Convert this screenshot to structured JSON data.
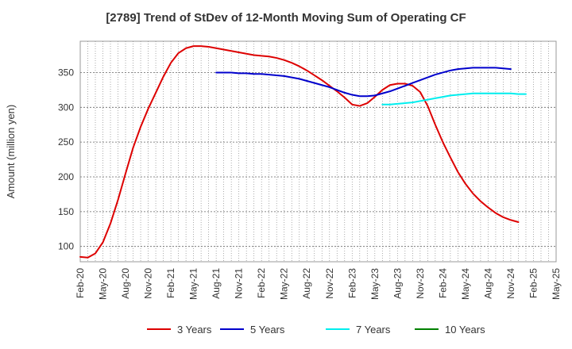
{
  "chart_data": {
    "type": "line",
    "title": "[2789]  Trend of StDev of 12-Month Moving Sum of Operating CF",
    "xlabel": "",
    "ylabel": "Amount (million yen)",
    "ylim": [
      78,
      395
    ],
    "yticks": [
      100,
      150,
      200,
      250,
      300,
      350
    ],
    "x_tick_labels": [
      "Feb-20",
      "May-20",
      "Aug-20",
      "Nov-20",
      "Feb-21",
      "May-21",
      "Aug-21",
      "Nov-21",
      "Feb-22",
      "May-22",
      "Aug-22",
      "Nov-22",
      "Feb-23",
      "May-23",
      "Aug-23",
      "Nov-23",
      "Feb-24",
      "May-24",
      "Aug-24",
      "Nov-24",
      "Feb-25",
      "May-25"
    ],
    "grid": true,
    "legend_position": "bottom",
    "x_months": [
      "2020-02",
      "2020-03",
      "2020-04",
      "2020-05",
      "2020-06",
      "2020-07",
      "2020-08",
      "2020-09",
      "2020-10",
      "2020-11",
      "2020-12",
      "2021-01",
      "2021-02",
      "2021-03",
      "2021-04",
      "2021-05",
      "2021-06",
      "2021-07",
      "2021-08",
      "2021-09",
      "2021-10",
      "2021-11",
      "2021-12",
      "2022-01",
      "2022-02",
      "2022-03",
      "2022-04",
      "2022-05",
      "2022-06",
      "2022-07",
      "2022-08",
      "2022-09",
      "2022-10",
      "2022-11",
      "2022-12",
      "2023-01",
      "2023-02",
      "2023-03",
      "2023-04",
      "2023-05",
      "2023-06",
      "2023-07",
      "2023-08",
      "2023-09",
      "2023-10",
      "2023-11",
      "2023-12",
      "2024-01",
      "2024-02",
      "2024-03",
      "2024-04",
      "2024-05",
      "2024-06",
      "2024-07",
      "2024-08",
      "2024-09",
      "2024-10",
      "2024-11",
      "2024-12",
      "2025-01",
      "2025-02"
    ],
    "series": [
      {
        "name": "3 Years",
        "color": "#dd0000",
        "values": [
          85,
          84,
          90,
          106,
          133,
          167,
          205,
          242,
          272,
          298,
          321,
          344,
          364,
          378,
          385,
          388,
          388,
          387,
          385,
          383,
          381,
          379,
          377,
          375,
          374,
          373,
          371,
          368,
          364,
          359,
          353,
          346,
          339,
          331,
          323,
          314,
          304,
          302,
          306,
          315,
          325,
          332,
          334,
          334,
          331,
          322,
          302,
          275,
          250,
          228,
          207,
          190,
          176,
          165,
          156,
          148,
          142,
          138,
          135,
          null,
          null
        ],
        "first_index": 0
      },
      {
        "name": "5 Years",
        "color": "#0000cc",
        "values": [
          350,
          350,
          350,
          349,
          349,
          348,
          348,
          347,
          346,
          345,
          343,
          341,
          338,
          335,
          332,
          329,
          325,
          321,
          318,
          316,
          316,
          317,
          320,
          323,
          327,
          331,
          335,
          339,
          343,
          347,
          350,
          353,
          355,
          356,
          357,
          357,
          357,
          357,
          356,
          355
        ],
        "first_index": 18
      },
      {
        "name": "7 Years",
        "color": "#00eeee",
        "values": [
          304,
          304,
          305,
          306,
          307,
          309,
          311,
          313,
          315,
          317,
          318,
          319,
          320,
          320,
          320,
          320,
          320,
          320,
          319,
          319
        ],
        "first_index": 40
      },
      {
        "name": "10 Years",
        "color": "#008000",
        "values": [],
        "first_index": 0
      }
    ]
  }
}
